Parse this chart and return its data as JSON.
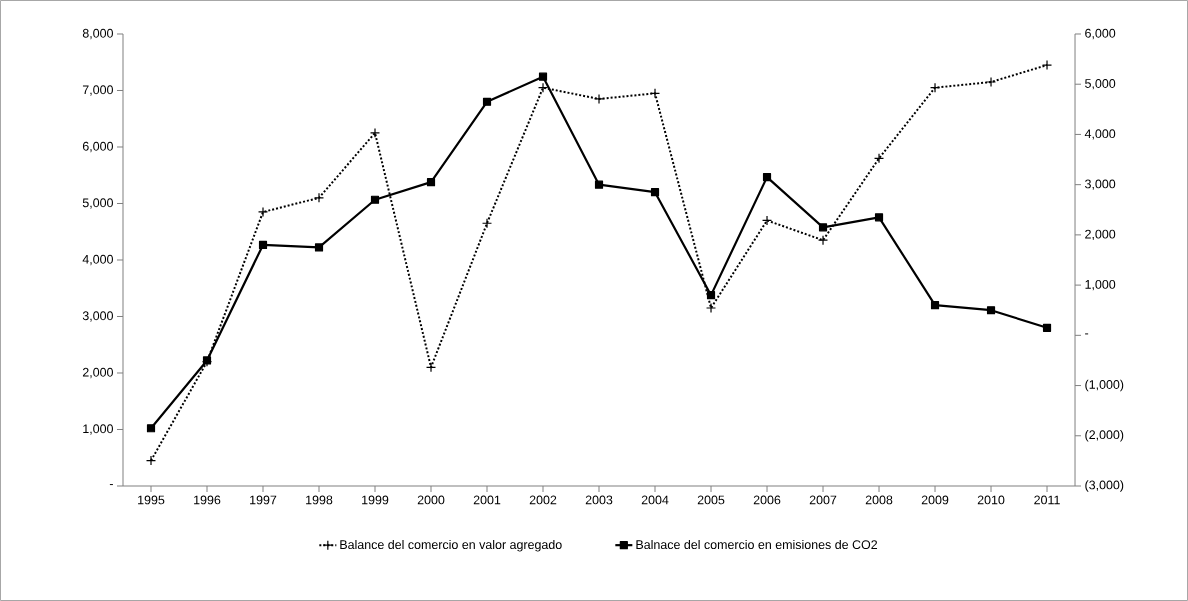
{
  "chart_data": {
    "type": "line",
    "categories": [
      "1995",
      "1996",
      "1997",
      "1998",
      "1999",
      "2000",
      "2001",
      "2002",
      "2003",
      "2004",
      "2005",
      "2006",
      "2007",
      "2008",
      "2009",
      "2010",
      "2011"
    ],
    "series": [
      {
        "name": "Balance del comercio en valor agregado",
        "color": "#000000",
        "marker": "cross",
        "line_style": "dotted",
        "values": [
          450,
          2200,
          4850,
          5100,
          6250,
          2100,
          4650,
          7050,
          6850,
          6950,
          3150,
          4700,
          4350,
          5800,
          7050,
          7150,
          7450
        ]
      },
      {
        "name": "Balnace del comercio en emisiones de CO2",
        "color": "#000000",
        "marker": "square",
        "line_style": "solid",
        "axis": "y2",
        "values": [
          -1850,
          -500,
          1800,
          1750,
          2700,
          3050,
          4650,
          5150,
          3000,
          2850,
          800,
          3150,
          2150,
          2350,
          600,
          500,
          150
        ]
      }
    ],
    "ylim": [
      0,
      8000
    ],
    "yticks": [
      {
        "value": 0,
        "label": "-"
      },
      {
        "value": 1000,
        "label": "1,000"
      },
      {
        "value": 2000,
        "label": "2,000"
      },
      {
        "value": 3000,
        "label": "3,000"
      },
      {
        "value": 4000,
        "label": "4,000"
      },
      {
        "value": 5000,
        "label": "5,000"
      },
      {
        "value": 6000,
        "label": "6,000"
      },
      {
        "value": 7000,
        "label": "7,000"
      },
      {
        "value": 8000,
        "label": "8,000"
      }
    ],
    "y2lim": [
      -3000,
      6000
    ],
    "y2ticks": [
      {
        "value": -3000,
        "label": "(3,000)"
      },
      {
        "value": -2000,
        "label": "(2,000)"
      },
      {
        "value": -1000,
        "label": "(1,000)"
      },
      {
        "value": 0,
        "label": "-"
      },
      {
        "value": 1000,
        "label": "1,000"
      },
      {
        "value": 2000,
        "label": "2,000"
      },
      {
        "value": 3000,
        "label": "3,000"
      },
      {
        "value": 4000,
        "label": "4,000"
      },
      {
        "value": 5000,
        "label": "5,000"
      },
      {
        "value": 6000,
        "label": "6,000"
      }
    ],
    "grid": false,
    "legend": "bottom"
  }
}
